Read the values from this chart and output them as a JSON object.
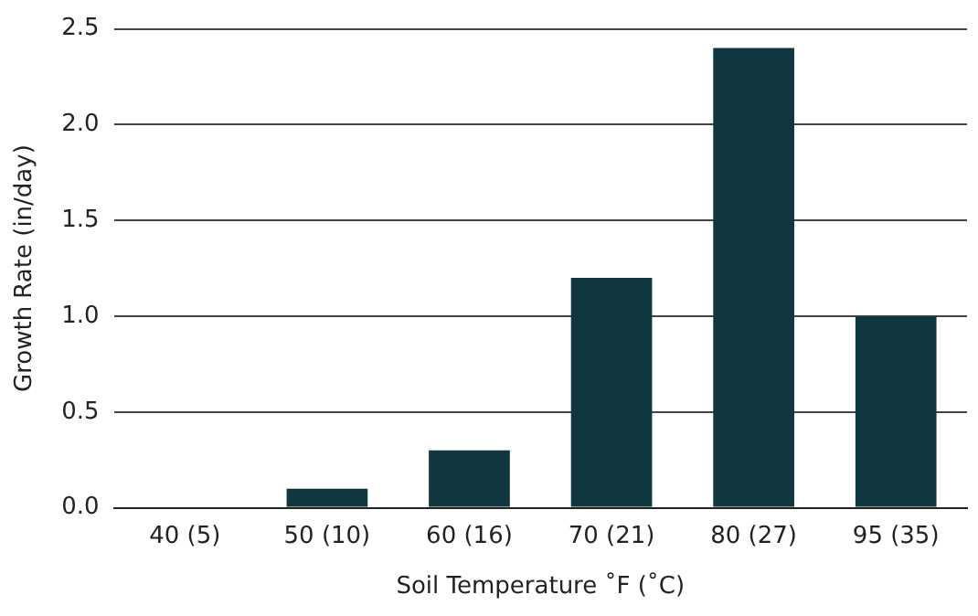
{
  "chart_data": {
    "type": "bar",
    "xlabel": "Soil Temperature ˚F (˚C)",
    "ylabel": "Growth Rate (in/day)",
    "categories": [
      "40 (5)",
      "50 (10)",
      "60 (16)",
      "70 (21)",
      "80 (27)",
      "95 (35)"
    ],
    "values": [
      0,
      0.1,
      0.3,
      1.2,
      2.4,
      1.0
    ],
    "color": "#10363f",
    "ylim": [
      0,
      2.5
    ],
    "yticks": [
      {
        "value": 0,
        "label": "0.0"
      },
      {
        "value": 0.5,
        "label": "0.5"
      },
      {
        "value": 1,
        "label": "1.0"
      },
      {
        "value": 1.5,
        "label": "1.5"
      },
      {
        "value": 2,
        "label": "2.0"
      },
      {
        "value": 2.5,
        "label": "2.5"
      }
    ],
    "grid": "y"
  }
}
